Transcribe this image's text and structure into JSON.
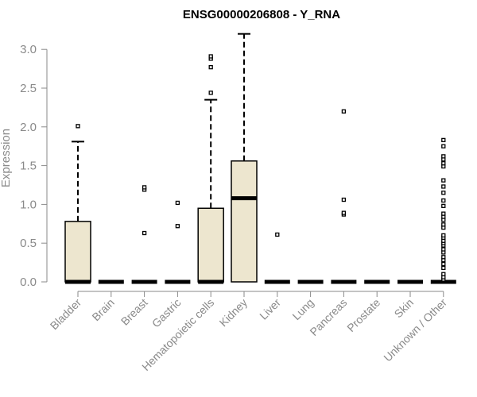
{
  "chart_data": {
    "type": "boxplot",
    "title": "ENSG00000206808 - Y_RNA",
    "xlabel": "",
    "ylabel": "Expression",
    "ylim": [
      0,
      3.2
    ],
    "yticks": [
      "0.0",
      "0.5",
      "1.0",
      "1.5",
      "2.0",
      "2.5",
      "3.0"
    ],
    "grid": false,
    "colors": {
      "box_fill": "#ede6cf",
      "box_stroke": "#000000",
      "axis": "#8a8a8a"
    },
    "categories": [
      "Bladder",
      "Brain",
      "Breast",
      "Gastric",
      "Hematopoietic cells",
      "Kidney",
      "Liver",
      "Lung",
      "Pancreas",
      "Prostate",
      "Skin",
      "Unknown / Other"
    ],
    "boxes": [
      {
        "category": "Bladder",
        "min": 0,
        "q1": 0,
        "median": 0,
        "q3": 0.78,
        "max": 1.81,
        "outliers": [
          2.01
        ]
      },
      {
        "category": "Brain",
        "min": 0,
        "q1": 0,
        "median": 0,
        "q3": 0,
        "max": 0,
        "outliers": []
      },
      {
        "category": "Breast",
        "min": 0,
        "q1": 0,
        "median": 0,
        "q3": 0,
        "max": 0,
        "outliers": [
          0.63,
          1.19,
          1.22
        ]
      },
      {
        "category": "Gastric",
        "min": 0,
        "q1": 0,
        "median": 0,
        "q3": 0,
        "max": 0,
        "outliers": [
          0.72,
          1.02
        ]
      },
      {
        "category": "Hematopoietic cells",
        "min": 0,
        "q1": 0,
        "median": 0,
        "q3": 0.95,
        "max": 2.35,
        "outliers": [
          2.44,
          2.77,
          2.88,
          2.91
        ]
      },
      {
        "category": "Kidney",
        "min": 0,
        "q1": 0,
        "median": 1.08,
        "q3": 1.56,
        "max": 3.2,
        "outliers": []
      },
      {
        "category": "Liver",
        "min": 0,
        "q1": 0,
        "median": 0,
        "q3": 0,
        "max": 0,
        "outliers": [
          0.61
        ]
      },
      {
        "category": "Lung",
        "min": 0,
        "q1": 0,
        "median": 0,
        "q3": 0,
        "max": 0,
        "outliers": []
      },
      {
        "category": "Pancreas",
        "min": 0,
        "q1": 0,
        "median": 0,
        "q3": 0,
        "max": 0,
        "outliers": [
          0.87,
          0.89,
          1.06,
          2.2
        ]
      },
      {
        "category": "Prostate",
        "min": 0,
        "q1": 0,
        "median": 0,
        "q3": 0,
        "max": 0,
        "outliers": []
      },
      {
        "category": "Skin",
        "min": 0,
        "q1": 0,
        "median": 0,
        "q3": 0,
        "max": 0,
        "outliers": []
      },
      {
        "category": "Unknown / Other",
        "min": 0,
        "q1": 0,
        "median": 0,
        "q3": 0,
        "max": 0,
        "outliers": [
          0.03,
          0.06,
          0.1,
          0.18,
          0.23,
          0.28,
          0.32,
          0.38,
          0.42,
          0.47,
          0.5,
          0.53,
          0.57,
          0.6,
          0.7,
          0.74,
          0.8,
          0.84,
          0.88,
          0.98,
          1.05,
          1.15,
          1.23,
          1.31,
          1.49,
          1.53,
          1.58,
          1.62,
          1.75,
          1.83
        ]
      }
    ]
  }
}
